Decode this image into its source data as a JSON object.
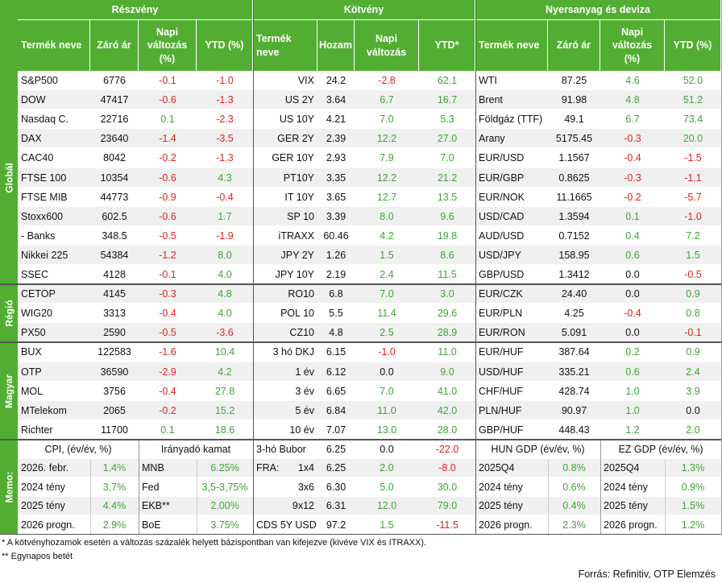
{
  "headers": {
    "groups": [
      "Részvény",
      "Kötvény",
      "Nyersanyag és deviza"
    ],
    "columns": [
      [
        "Termék neve",
        "Záró ár",
        "Napi változás (%)",
        "YTD (%)"
      ],
      [
        "Termék neve",
        "Hozam",
        "Napi változás",
        "YTD*"
      ],
      [
        "Termék neve",
        "Záró ár",
        "Napi változás (%)",
        "YTD (%)"
      ]
    ]
  },
  "sections": [
    {
      "label": "Globál",
      "rows": [
        [
          "S&P500",
          "6776",
          "-0.1",
          "-1.0",
          "VIX",
          "24.2",
          "-2.8",
          "62.1",
          "WTI",
          "87.25",
          "4.6",
          "52.0"
        ],
        [
          "DOW",
          "47417",
          "-0.6",
          "-1.3",
          "US 2Y",
          "3.64",
          "6.7",
          "16.7",
          "Brent",
          "91.98",
          "4.8",
          "51.2"
        ],
        [
          "Nasdaq C.",
          "22716",
          "0.1",
          "-2.3",
          "US 10Y",
          "4.21",
          "7.0",
          "5.3",
          "Földgáz (TTF)",
          "49.1",
          "6.7",
          "73.4"
        ],
        [
          "DAX",
          "23640",
          "-1.4",
          "-3.5",
          "GER 2Y",
          "2.39",
          "12.2",
          "27.0",
          "Arany",
          "5175.45",
          "-0.3",
          "20.0"
        ],
        [
          "CAC40",
          "8042",
          "-0.2",
          "-1.3",
          "GER 10Y",
          "2.93",
          "7.9",
          "7.0",
          "EUR/USD",
          "1.1567",
          "-0.4",
          "-1.5"
        ],
        [
          "FTSE 100",
          "10354",
          "-0.6",
          "4.3",
          "PT10Y",
          "3.35",
          "12.2",
          "21.2",
          "EUR/GBP",
          "0.8625",
          "-0.3",
          "-1.1"
        ],
        [
          "FTSE MIB",
          "44773",
          "-0.9",
          "-0.4",
          "IT 10Y",
          "3.65",
          "12.7",
          "13.5",
          "EUR/NOK",
          "11.1665",
          "-0.2",
          "-5.7"
        ],
        [
          "Stoxx600",
          "602.5",
          "-0.6",
          "1.7",
          "SP 10",
          "3.39",
          "8.0",
          "9.6",
          "USD/CAD",
          "1.3594",
          "0.1",
          "-1.0"
        ],
        [
          "- Banks",
          "348.5",
          "-0.5",
          "-1.9",
          "iTRAXX",
          "60.46",
          "4.2",
          "19.8",
          "AUD/USD",
          "0.7152",
          "0.4",
          "7.2"
        ],
        [
          "Nikkei 225",
          "54384",
          "-1.2",
          "8.0",
          "JPY 2Y",
          "1.26",
          "1.5",
          "8.6",
          "USD/JPY",
          "158.95",
          "0.6",
          "1.5"
        ],
        [
          "SSEC",
          "4128",
          "-0.1",
          "4.0",
          "JPY 10Y",
          "2.19",
          "2.4",
          "11.5",
          "GBP/USD",
          "1.3412",
          "0.0",
          "-0.5"
        ]
      ]
    },
    {
      "label": "Régió",
      "rows": [
        [
          "CETOP",
          "4145",
          "-0.3",
          "4.8",
          "RO10",
          "6.8",
          "7.0",
          "3.0",
          "EUR/CZK",
          "24.40",
          "0.0",
          "0.9"
        ],
        [
          "WIG20",
          "3313",
          "-0.4",
          "4.0",
          "POL 10",
          "5.5",
          "11.4",
          "29.6",
          "EUR/PLN",
          "4.25",
          "-0.4",
          "0.8"
        ],
        [
          "PX50",
          "2590",
          "-0.5",
          "-3.6",
          "CZ10",
          "4.8",
          "2.5",
          "28.9",
          "EUR/RON",
          "5.091",
          "0.0",
          "-0.1"
        ]
      ]
    },
    {
      "label": "Magyar",
      "rows": [
        [
          "BUX",
          "122583",
          "-1.6",
          "10.4",
          "3 hó DKJ",
          "6.15",
          "-1.0",
          "11.0",
          "EUR/HUF",
          "387.64",
          "0.2",
          "0.9"
        ],
        [
          "OTP",
          "36590",
          "-2.9",
          "4.2",
          "1 év",
          "6.12",
          "0.0",
          "9.0",
          "USD/HUF",
          "335.21",
          "0.6",
          "2.4"
        ],
        [
          "MOL",
          "3756",
          "-0.4",
          "27.8",
          "3 év",
          "6.65",
          "7.0",
          "41.0",
          "CHF/HUF",
          "428.74",
          "1.0",
          "3.9"
        ],
        [
          "MTelekom",
          "2065",
          "-0.2",
          "15.2",
          "5 év",
          "6.84",
          "11.0",
          "42.0",
          "PLN/HUF",
          "90.97",
          "1.0",
          "0.0"
        ],
        [
          "Richter",
          "11700",
          "0.1",
          "18.6",
          "10 év",
          "7.07",
          "13.0",
          "28.0",
          "GBP/HUF",
          "448.43",
          "1.2",
          "2.0"
        ]
      ]
    }
  ],
  "memo": {
    "label": "Memo:",
    "cpi": {
      "title": "CPI, (év/év, %)",
      "rows": [
        [
          "2026. febr.",
          "1.4%"
        ],
        [
          "2024 tény",
          "3.7%"
        ],
        [
          "2025 tény",
          "4.4%"
        ],
        [
          "2026 progn.",
          "2.9%"
        ]
      ]
    },
    "rate": {
      "title": "Irányadó kamat",
      "rows": [
        [
          "MNB",
          "6.25%"
        ],
        [
          "Fed",
          "3,5-3,75%"
        ],
        [
          "EKB**",
          "2.00%"
        ],
        [
          "BoE",
          "3.75%"
        ]
      ]
    },
    "bonds": [
      {
        "name": "3-hó Bubor",
        "values": [
          "6.25",
          "0.0",
          "-22.0"
        ]
      },
      {
        "name": "FRA:",
        "tenor": "1x4",
        "values": [
          "6.25",
          "2.0",
          "-8.0"
        ]
      },
      {
        "tenor": "3x6",
        "values": [
          "6.30",
          "5.0",
          "30.0"
        ]
      },
      {
        "tenor": "9x12",
        "values": [
          "6.31",
          "12.0",
          "79.0"
        ]
      },
      {
        "name": "CDS 5Y USD",
        "values": [
          "97.2",
          "1.5",
          "-11.5"
        ]
      }
    ],
    "hun_gdp": {
      "title": "HUN GDP (év/év, %)",
      "rows": [
        [
          "2025Q4",
          "0.8%"
        ],
        [
          "2024 tény",
          "0.6%"
        ],
        [
          "2025 tény",
          "0.4%"
        ],
        [
          "2026 progn.",
          "2.3%"
        ]
      ]
    },
    "ez_gdp": {
      "title": "EZ GDP (év/év, %)",
      "rows": [
        [
          "2025Q4",
          "1.3%"
        ],
        [
          "2024 tény",
          "0.9%"
        ],
        [
          "2025 tény",
          "1.5%"
        ],
        [
          "2026 progn.",
          "1.2%"
        ]
      ]
    }
  },
  "footnotes": [
    "* A kötvényhozamok esetén a változás százalék helyett bázispontban van kifejezve (kivéve VIX és ITRAXX).",
    "** Egynapos betét"
  ],
  "source": "Forrás: Refinitiv, OTP Elemzés"
}
